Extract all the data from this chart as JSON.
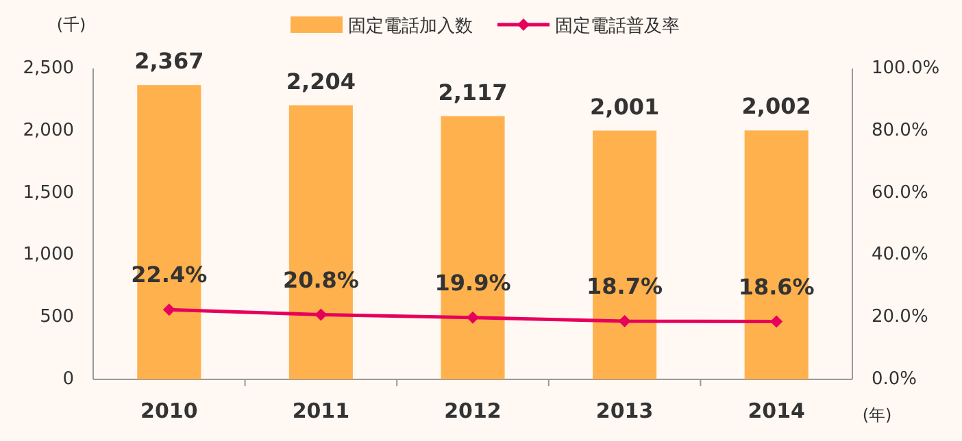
{
  "chart_data": {
    "type": "bar",
    "categories": [
      "2010",
      "2011",
      "2012",
      "2013",
      "2014"
    ],
    "ylabel": "(千)",
    "xlabel": "(年)",
    "series": [
      {
        "name": "固定電話加入数",
        "color": "#ffb14e",
        "values": [
          2367,
          2204,
          2117,
          2001,
          2002
        ],
        "value_labels": [
          "2,367",
          "2,204",
          "2,117",
          "2,001",
          "2,002"
        ]
      },
      {
        "name": "固定電話普及率",
        "type": "line",
        "axis": "y2",
        "color": "#e6005c",
        "marker": "diamond",
        "values": [
          22.4,
          20.8,
          19.9,
          18.7,
          18.6
        ],
        "value_labels": [
          "22.4%",
          "20.8%",
          "19.9%",
          "18.7%",
          "18.6%"
        ]
      }
    ],
    "ylim": [
      0,
      2500
    ],
    "yticks": [
      {
        "value": 0,
        "label": "0"
      },
      {
        "value": 500,
        "label": "500"
      },
      {
        "value": 1000,
        "label": "1,000"
      },
      {
        "value": 1500,
        "label": "1,500"
      },
      {
        "value": 2000,
        "label": "2,000"
      },
      {
        "value": 2500,
        "label": "2,500"
      }
    ],
    "y2lim": [
      0,
      100
    ],
    "y2ticks": [
      {
        "value": 0,
        "label": "0.0%"
      },
      {
        "value": 20,
        "label": "20.0%"
      },
      {
        "value": 40,
        "label": "40.0%"
      },
      {
        "value": 60,
        "label": "60.0%"
      },
      {
        "value": 80,
        "label": "80.0%"
      },
      {
        "value": 100,
        "label": "100.0%"
      }
    ],
    "legend": "top",
    "grid": false
  }
}
